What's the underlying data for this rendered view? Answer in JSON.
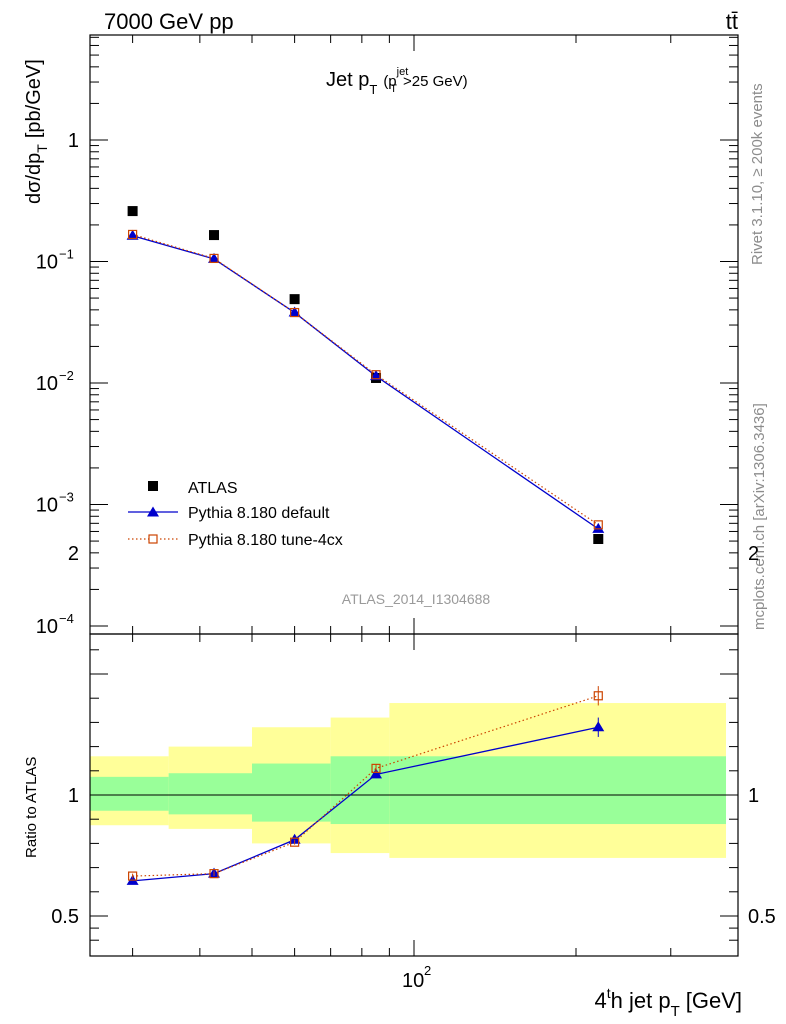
{
  "header": {
    "left": "7000 GeV pp",
    "right": "tt̄"
  },
  "side_labels": {
    "rivet": "Rivet 3.1.10, ≥ 200k events",
    "mcplots": "mcplots.cern.ch [arXiv:1306.3436]"
  },
  "watermark": "ATLAS_2014_I1304688",
  "colors": {
    "atlas": "#000000",
    "default": "#0000cc",
    "tune": "#cc4400",
    "band_inner": "#99ff99",
    "band_outer": "#ffff99"
  },
  "chart_data": [
    {
      "type": "scatter",
      "title": "Jet p_T (p_T^jet > 25 GeV)",
      "title_parts": {
        "main": "Jet p",
        "sub": "T",
        "paren_open": "(p",
        "sup": "jet",
        "sub2": "T",
        "rest": ">25 GeV)"
      },
      "ylabel": "dσ/dp_T [pb/GeV]",
      "ylabel_parts": {
        "main": "dσ/dp",
        "sub": "T",
        "unit": "[pb/GeV]"
      },
      "yscale": "log",
      "xscale": "log",
      "ylim": [
        0.0001,
        10
      ],
      "xlim": [
        25,
        400
      ],
      "y_ticks": [
        {
          "value": 1,
          "label": "1",
          "exp": ""
        },
        {
          "value": 0.1,
          "label": "10",
          "exp": "−1"
        },
        {
          "value": 0.01,
          "label": "10",
          "exp": "−2"
        },
        {
          "value": 0.001,
          "label": "10",
          "exp": "−3"
        },
        {
          "value": 0.0001,
          "label": "10",
          "exp": "−4"
        }
      ],
      "legend_position": "bottom-left",
      "series": [
        {
          "name": "ATLAS",
          "marker": "filled-square",
          "x": [
            30,
            42.5,
            60,
            85,
            220
          ],
          "y": [
            0.26,
            0.165,
            0.049,
            0.011,
            0.00052
          ]
        },
        {
          "name": "Pythia 8.180 default",
          "marker": "filled-triangle",
          "line": "solid",
          "x": [
            30,
            42.5,
            60,
            85,
            220
          ],
          "y": [
            0.163,
            0.105,
            0.038,
            0.0114,
            0.00063
          ]
        },
        {
          "name": "Pythia 8.180 tune-4cx",
          "marker": "open-square",
          "line": "dotted",
          "x": [
            30,
            42.5,
            60,
            85,
            220
          ],
          "y": [
            0.167,
            0.106,
            0.038,
            0.0117,
            0.00068
          ]
        }
      ]
    },
    {
      "type": "scatter",
      "ylabel": "Ratio to ATLAS",
      "xlabel": "4^th jet p_T [GeV]",
      "xlabel_parts": {
        "pre": "4",
        "sup": "t",
        "mid": "h jet p",
        "sub": "T",
        "unit": "[GeV]"
      },
      "xscale": "log",
      "ylim": [
        0.4,
        2.3
      ],
      "xlim": [
        25,
        400
      ],
      "y_ticks": [
        {
          "value": 2,
          "label": "2"
        },
        {
          "value": 1,
          "label": "1"
        },
        {
          "value": 0.5,
          "label": "0.5"
        }
      ],
      "x_ticks": [
        {
          "value": 100,
          "label": "10",
          "exp": "2"
        }
      ],
      "reference_line": 1,
      "bands": [
        {
          "x0": 25,
          "x1": 35,
          "inner": [
            0.935,
            1.075
          ],
          "outer": [
            0.875,
            1.16
          ]
        },
        {
          "x0": 35,
          "x1": 50,
          "inner": [
            0.92,
            1.09
          ],
          "outer": [
            0.86,
            1.2
          ]
        },
        {
          "x0": 50,
          "x1": 70,
          "inner": [
            0.89,
            1.13
          ],
          "outer": [
            0.8,
            1.28
          ]
        },
        {
          "x0": 70,
          "x1": 90,
          "inner": [
            0.88,
            1.16
          ],
          "outer": [
            0.76,
            1.32
          ]
        },
        {
          "x0": 90,
          "x1": 380,
          "inner": [
            0.88,
            1.16
          ],
          "outer": [
            0.74,
            1.38
          ]
        }
      ],
      "series": [
        {
          "name": "Pythia 8.180 default",
          "x": [
            30,
            42.5,
            60,
            85,
            220
          ],
          "y": [
            0.645,
            0.675,
            0.815,
            1.085,
            1.28
          ],
          "yerr": [
            0.01,
            0.01,
            0.01,
            0.015,
            0.04
          ]
        },
        {
          "name": "Pythia 8.180 tune-4cx",
          "x": [
            30,
            42.5,
            60,
            85,
            220
          ],
          "y": [
            0.665,
            0.675,
            0.805,
            1.11,
            1.41
          ],
          "yerr": [
            0.01,
            0.01,
            0.01,
            0.015,
            0.04
          ]
        }
      ]
    }
  ]
}
